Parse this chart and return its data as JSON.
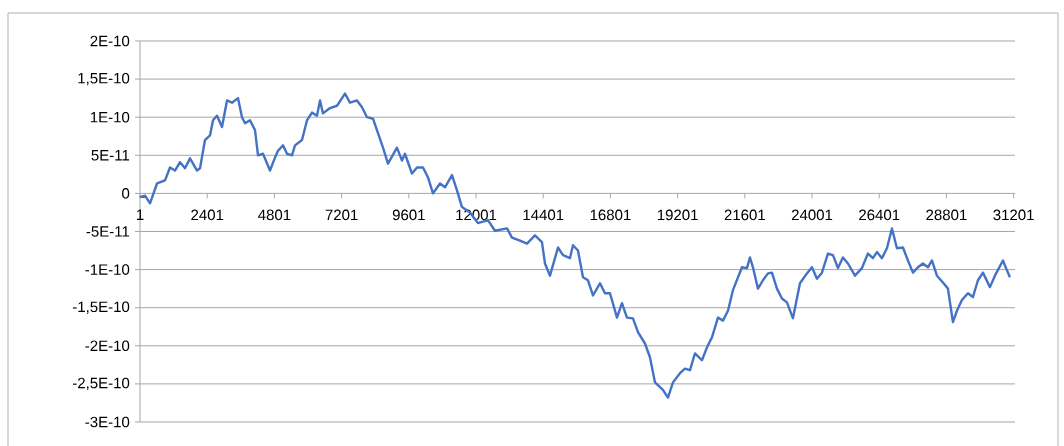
{
  "chart_data": {
    "type": "line",
    "color": "#4472c4",
    "grid": "y",
    "x": [
      1,
      180,
      358,
      608,
      894,
      1072,
      1251,
      1430,
      1608,
      1787,
      2037,
      2144,
      2322,
      2501,
      2608,
      2751,
      2929,
      3108,
      3286,
      3501,
      3643,
      3751,
      3929,
      4108,
      4215,
      4393,
      4643,
      4822,
      4929,
      5108,
      5250,
      5429,
      5536,
      5786,
      5965,
      6143,
      6322,
      6429,
      6536,
      6786,
      7036,
      7322,
      7500,
      7750,
      7929,
      8107,
      8321,
      8500,
      8679,
      8857,
      9178,
      9357,
      9464,
      9714,
      9893,
      10107,
      10286,
      10464,
      10714,
      10892,
      11143,
      11321,
      11500,
      11785,
      12071,
      12428,
      12678,
      13107,
      13285,
      13571,
      13821,
      14106,
      14356,
      14464,
      14643,
      14928,
      15107,
      15356,
      15464,
      15642,
      15821,
      15999,
      16178,
      16428,
      16606,
      16785,
      17035,
      17213,
      17392,
      17606,
      17785,
      18035,
      18213,
      18392,
      18677,
      18856,
      19035,
      19285,
      19463,
      19642,
      19820,
      20070,
      20249,
      20427,
      20642,
      20820,
      20999,
      21177,
      21499,
      21677,
      21784,
      21891,
      22070,
      22248,
      22427,
      22570,
      22748,
      22927,
      23105,
      23320,
      23570,
      23819,
      23998,
      24177,
      24355,
      24570,
      24748,
      24927,
      25105,
      25284,
      25534,
      25784,
      25998,
      26176,
      26319,
      26498,
      26676,
      26855,
      27033,
      27248,
      27426,
      27605,
      27783,
      27962,
      28140,
      28283,
      28462,
      28676,
      28855,
      29034,
      29176,
      29355,
      29569,
      29748,
      29927,
      30105,
      30355,
      30533,
      30819,
      30962,
      31069
    ],
    "values": [
      -5e-12,
      -3e-12,
      -1.3e-11,
      1.3e-11,
      1.7e-11,
      3.4e-11,
      3e-11,
      4.1e-11,
      3.3e-11,
      4.6e-11,
      3e-11,
      3.3e-11,
      7e-11,
      7.6e-11,
      9.6e-11,
      1.02e-10,
      8.7e-11,
      1.22e-10,
      1.19e-10,
      1.25e-10,
      1e-10,
      9.2e-11,
      9.6e-11,
      8.3e-11,
      5e-11,
      5.2e-11,
      3e-11,
      4.7e-11,
      5.6e-11,
      6.3e-11,
      5.2e-11,
      5e-11,
      6.3e-11,
      7e-11,
      9.6e-11,
      1.06e-10,
      1.02e-10,
      1.22e-10,
      1.05e-10,
      1.12e-10,
      1.15e-10,
      1.31e-10,
      1.19e-10,
      1.22e-10,
      1.13e-10,
      1e-10,
      9.8e-11,
      7.9e-11,
      6e-11,
      3.9e-11,
      6e-11,
      4.3e-11,
      5.2e-11,
      2.6e-11,
      3.4e-11,
      3.4e-11,
      2.1e-11,
      0,
      1.3e-11,
      8e-12,
      2.4e-11,
      4e-12,
      -1.8e-11,
      -2.5e-11,
      -3.9e-11,
      -3.5e-11,
      -4.9e-11,
      -4.6e-11,
      -5.8e-11,
      -6.2e-11,
      -6.6e-11,
      -5.5e-11,
      -6.4e-11,
      -9.2e-11,
      -1.08e-10,
      -7.1e-11,
      -8.1e-11,
      -8.5e-11,
      -6.8e-11,
      -7.5e-11,
      -1.1e-10,
      -1.14e-10,
      -1.34e-10,
      -1.18e-10,
      -1.31e-10,
      -1.31e-10,
      -1.63e-10,
      -1.44e-10,
      -1.63e-10,
      -1.64e-10,
      -1.82e-10,
      -1.97e-10,
      -2.15e-10,
      -2.48e-10,
      -2.58e-10,
      -2.68e-10,
      -2.48e-10,
      -2.36e-10,
      -2.3e-10,
      -2.32e-10,
      -2.1e-10,
      -2.19e-10,
      -2.02e-10,
      -1.89e-10,
      -1.63e-10,
      -1.67e-10,
      -1.54e-10,
      -1.27e-10,
      -9.7e-11,
      -9.8e-11,
      -8.4e-11,
      -9.7e-11,
      -1.25e-10,
      -1.14e-10,
      -1.05e-10,
      -1.04e-10,
      -1.25e-10,
      -1.38e-10,
      -1.43e-10,
      -1.64e-10,
      -1.18e-10,
      -1.05e-10,
      -9.7e-11,
      -1.12e-10,
      -1.04e-10,
      -7.9e-11,
      -8.1e-11,
      -9.8e-11,
      -8.4e-11,
      -9.2e-11,
      -1.08e-10,
      -9.8e-11,
      -7.9e-11,
      -8.5e-11,
      -7.7e-11,
      -8.5e-11,
      -7.2e-11,
      -4.6e-11,
      -7.2e-11,
      -7.1e-11,
      -8.8e-11,
      -1.04e-10,
      -9.7e-11,
      -9.2e-11,
      -9.7e-11,
      -8.8e-11,
      -1.08e-10,
      -1.17e-10,
      -1.25e-10,
      -1.69e-10,
      -1.54e-10,
      -1.4e-10,
      -1.31e-10,
      -1.36e-10,
      -1.14e-10,
      -1.04e-10,
      -1.23e-10,
      -1.08e-10,
      -8.8e-11,
      -1.01e-10,
      -1.1e-10
    ],
    "xlim": [
      1,
      31250
    ],
    "xticks": [
      1,
      2401,
      4801,
      7201,
      9601,
      12001,
      14401,
      16801,
      19201,
      21601,
      24001,
      26401,
      28801,
      31201
    ],
    "ylim": [
      -3e-10,
      2e-10
    ],
    "yticks": [
      {
        "value": 2e-10,
        "label": "2E-10"
      },
      {
        "value": 1.5e-10,
        "label": "1,5E-10"
      },
      {
        "value": 1e-10,
        "label": "1E-10"
      },
      {
        "value": 5e-11,
        "label": "5E-11"
      },
      {
        "value": 0,
        "label": "0"
      },
      {
        "value": -5e-11,
        "label": "-5E-11"
      },
      {
        "value": -1e-10,
        "label": "-1E-10"
      },
      {
        "value": -1.5e-10,
        "label": "-1,5E-10"
      },
      {
        "value": -2e-10,
        "label": "-2E-10"
      },
      {
        "value": -2.5e-10,
        "label": "-2,5E-10"
      },
      {
        "value": -3e-10,
        "label": "-3E-10"
      }
    ]
  }
}
